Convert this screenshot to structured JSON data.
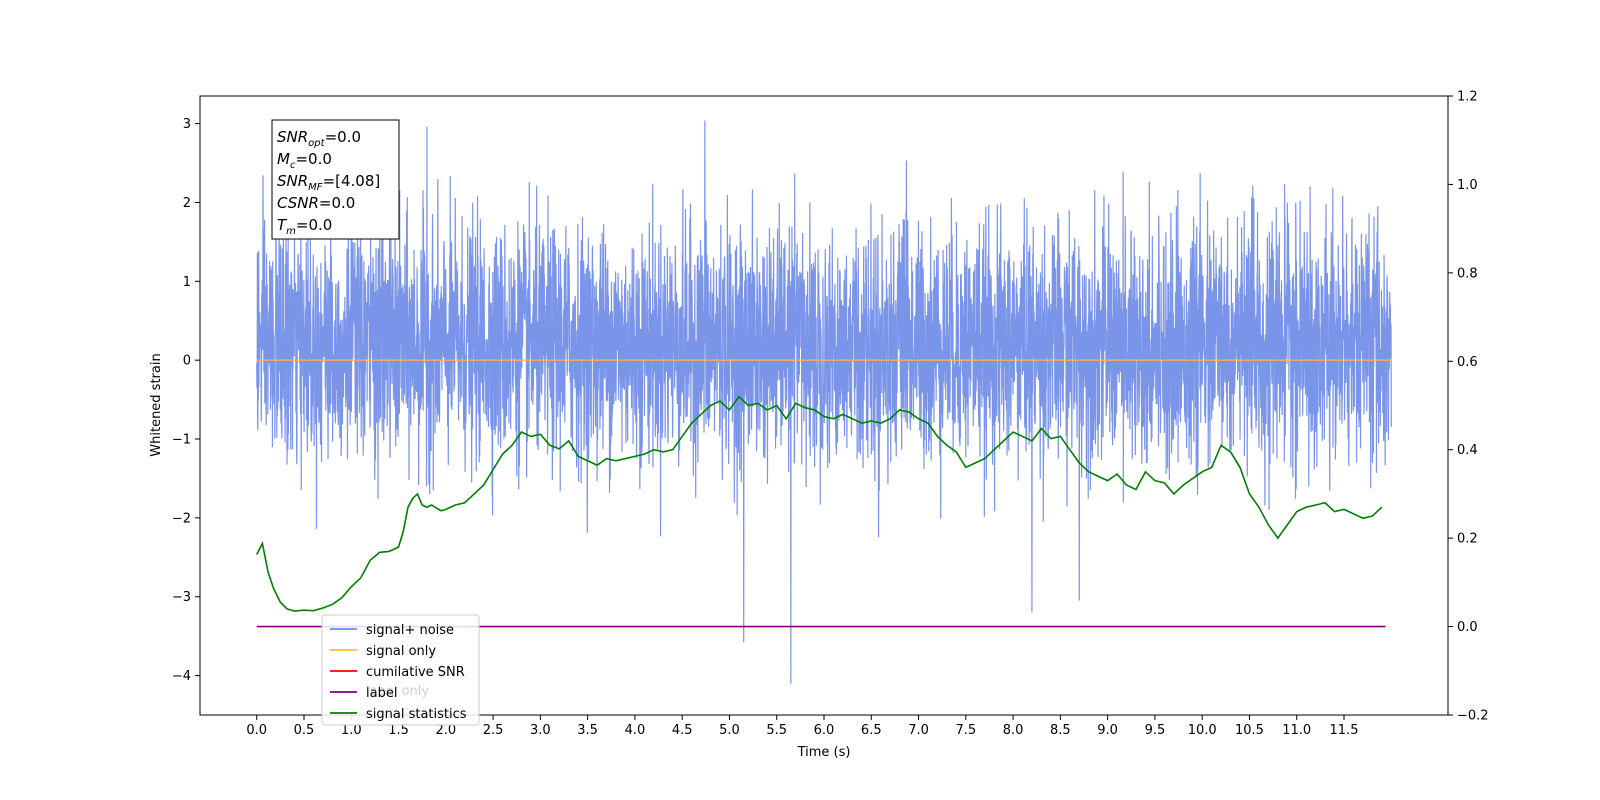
{
  "chart_data": {
    "type": "line",
    "title": "",
    "xlabel": "Time (s)",
    "ylabel": "Whitened strain",
    "xlim": [
      -0.6,
      12.6
    ],
    "ylim": [
      -4.5,
      3.35
    ],
    "y2lim": [
      -0.2,
      1.2
    ],
    "xticks": [
      0.0,
      0.5,
      1.0,
      1.5,
      2.0,
      2.5,
      3.0,
      3.5,
      4.0,
      4.5,
      5.0,
      5.5,
      6.0,
      6.5,
      7.0,
      7.5,
      8.0,
      8.5,
      9.0,
      9.5,
      10.0,
      10.5,
      11.0,
      11.5
    ],
    "xtick_labels": [
      "0.0",
      "0.5",
      "1.0",
      "1.5",
      "2.0",
      "2.5",
      "3.0",
      "3.5",
      "4.0",
      "4.5",
      "5.0",
      "5.5",
      "6.0",
      "6.5",
      "7.0",
      "7.5",
      "8.0",
      "8.5",
      "9.0",
      "9.5",
      "10.0",
      "10.5",
      "11.0",
      "11.5"
    ],
    "yticks": [
      -4,
      -3,
      -2,
      -1,
      0,
      1,
      2,
      3
    ],
    "ytick_labels": [
      "−4",
      "−3",
      "−2",
      "−1",
      "0",
      "1",
      "2",
      "3"
    ],
    "y2ticks": [
      -0.2,
      0.0,
      0.2,
      0.4,
      0.6,
      0.8,
      1.0,
      1.2
    ],
    "y2tick_labels": [
      "−0.2",
      "0.0",
      "0.2",
      "0.4",
      "0.6",
      "0.8",
      "1.0",
      "1.2"
    ],
    "grid": false,
    "legend_position": "lower-left",
    "series": [
      {
        "name": "signal+ noise",
        "color": "#6a88e6",
        "axis": "left",
        "kind": "noise",
        "x_range": [
          0.0,
          12.0
        ],
        "envelope": [
          -2.0,
          2.4
        ],
        "notable_extremes": [
          {
            "x": 4.74,
            "y": 3.04
          },
          {
            "x": 1.8,
            "y": 2.96
          },
          {
            "x": 5.15,
            "y": -3.58
          },
          {
            "x": 5.65,
            "y": -4.1
          },
          {
            "x": 8.2,
            "y": -3.2
          },
          {
            "x": 8.7,
            "y": -3.05
          }
        ]
      },
      {
        "name": "signal only",
        "color": "#ffb74d",
        "axis": "left",
        "x": [
          0.0,
          12.0
        ],
        "y": [
          0.0,
          0.0
        ]
      },
      {
        "name": "cumilative SNR",
        "color": "#ff0000",
        "axis": "right",
        "x": [],
        "y": []
      },
      {
        "name": "label",
        "color": "#800080",
        "axis": "right",
        "x": [
          0.0,
          11.94
        ],
        "y": [
          0.0,
          0.0
        ]
      },
      {
        "name": "signal statistics",
        "color": "#008000",
        "axis": "right",
        "x": [
          0.0,
          0.06,
          0.12,
          0.18,
          0.25,
          0.32,
          0.4,
          0.5,
          0.6,
          0.7,
          0.8,
          0.9,
          1.0,
          1.1,
          1.2,
          1.3,
          1.4,
          1.5,
          1.55,
          1.6,
          1.65,
          1.7,
          1.75,
          1.8,
          1.85,
          1.9,
          1.95,
          2.0,
          2.1,
          2.2,
          2.3,
          2.4,
          2.5,
          2.6,
          2.7,
          2.8,
          2.9,
          3.0,
          3.1,
          3.2,
          3.3,
          3.4,
          3.5,
          3.6,
          3.7,
          3.8,
          3.9,
          4.0,
          4.1,
          4.2,
          4.3,
          4.4,
          4.5,
          4.6,
          4.7,
          4.8,
          4.9,
          5.0,
          5.1,
          5.2,
          5.3,
          5.4,
          5.5,
          5.6,
          5.7,
          5.8,
          5.9,
          6.0,
          6.1,
          6.2,
          6.3,
          6.4,
          6.5,
          6.6,
          6.7,
          6.8,
          6.9,
          7.0,
          7.1,
          7.2,
          7.3,
          7.4,
          7.5,
          7.6,
          7.7,
          7.8,
          7.9,
          8.0,
          8.1,
          8.2,
          8.3,
          8.4,
          8.5,
          8.6,
          8.7,
          8.8,
          8.9,
          9.0,
          9.1,
          9.2,
          9.3,
          9.4,
          9.5,
          9.6,
          9.7,
          9.8,
          9.9,
          10.0,
          10.1,
          10.2,
          10.3,
          10.4,
          10.5,
          10.6,
          10.7,
          10.8,
          10.9,
          11.0,
          11.1,
          11.2,
          11.3,
          11.4,
          11.5,
          11.6,
          11.7,
          11.8,
          11.9
        ],
        "y": [
          0.163,
          0.188,
          0.123,
          0.085,
          0.055,
          0.04,
          0.035,
          0.037,
          0.036,
          0.042,
          0.05,
          0.065,
          0.09,
          0.11,
          0.15,
          0.168,
          0.17,
          0.18,
          0.215,
          0.27,
          0.29,
          0.3,
          0.275,
          0.27,
          0.275,
          0.268,
          0.262,
          0.265,
          0.275,
          0.28,
          0.3,
          0.32,
          0.355,
          0.39,
          0.41,
          0.44,
          0.43,
          0.435,
          0.41,
          0.402,
          0.42,
          0.385,
          0.375,
          0.365,
          0.38,
          0.375,
          0.38,
          0.385,
          0.39,
          0.4,
          0.395,
          0.4,
          0.43,
          0.46,
          0.48,
          0.5,
          0.51,
          0.49,
          0.52,
          0.5,
          0.505,
          0.49,
          0.5,
          0.47,
          0.505,
          0.495,
          0.49,
          0.475,
          0.47,
          0.48,
          0.47,
          0.46,
          0.465,
          0.46,
          0.47,
          0.49,
          0.485,
          0.47,
          0.46,
          0.43,
          0.41,
          0.395,
          0.36,
          0.37,
          0.38,
          0.4,
          0.42,
          0.44,
          0.43,
          0.42,
          0.448,
          0.425,
          0.43,
          0.4,
          0.37,
          0.35,
          0.34,
          0.33,
          0.345,
          0.32,
          0.31,
          0.35,
          0.33,
          0.325,
          0.3,
          0.32,
          0.335,
          0.35,
          0.36,
          0.41,
          0.395,
          0.36,
          0.3,
          0.27,
          0.23,
          0.2,
          0.23,
          0.26,
          0.27,
          0.275,
          0.28,
          0.26,
          0.265,
          0.255,
          0.245,
          0.25,
          0.27
        ]
      }
    ],
    "annotation": [
      {
        "base": "SNR",
        "sub": "opt",
        "value": "=0.0"
      },
      {
        "base": "M",
        "sub": "c",
        "value": "=0.0"
      },
      {
        "base": "SNR",
        "sub": "MF",
        "value": "=[4.08]"
      },
      {
        "base": "CSNR",
        "sub": "",
        "value": "=0.0"
      },
      {
        "base": "T",
        "sub": "m",
        "value": "=0.0"
      }
    ]
  },
  "legend": {
    "entries": [
      {
        "label": "signal+ noise",
        "color": "#6a88e6"
      },
      {
        "label": "signal only",
        "color": "#ffb74d"
      },
      {
        "label": "cumilative SNR",
        "color": "#ff0000"
      },
      {
        "label": "label",
        "color": "#800080"
      },
      {
        "label": "signal statistics",
        "color": "#008000"
      }
    ],
    "hidden_text": "label only"
  }
}
